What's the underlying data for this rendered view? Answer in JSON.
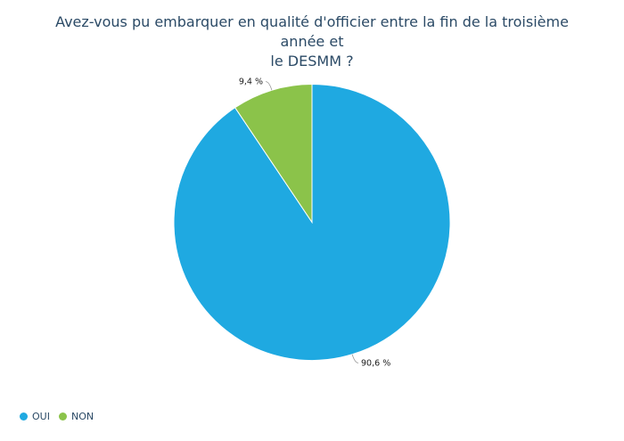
{
  "chart_data": {
    "type": "pie",
    "title": "Avez-vous pu embarquer en qualité d'officier entre la fin de la troisième année et le DESMM ?",
    "title_lines": [
      "Avez-vous pu embarquer en qualité d'officier entre la fin de la troisième année et",
      "le DESMM ?"
    ],
    "categories": [
      "OUI",
      "NON"
    ],
    "values": [
      90.6,
      9.4
    ],
    "value_labels": [
      "90,6 %",
      "9,4 %"
    ],
    "colors": [
      "#1fa9e1",
      "#8bc34a"
    ],
    "legend_position": "bottom-left"
  }
}
